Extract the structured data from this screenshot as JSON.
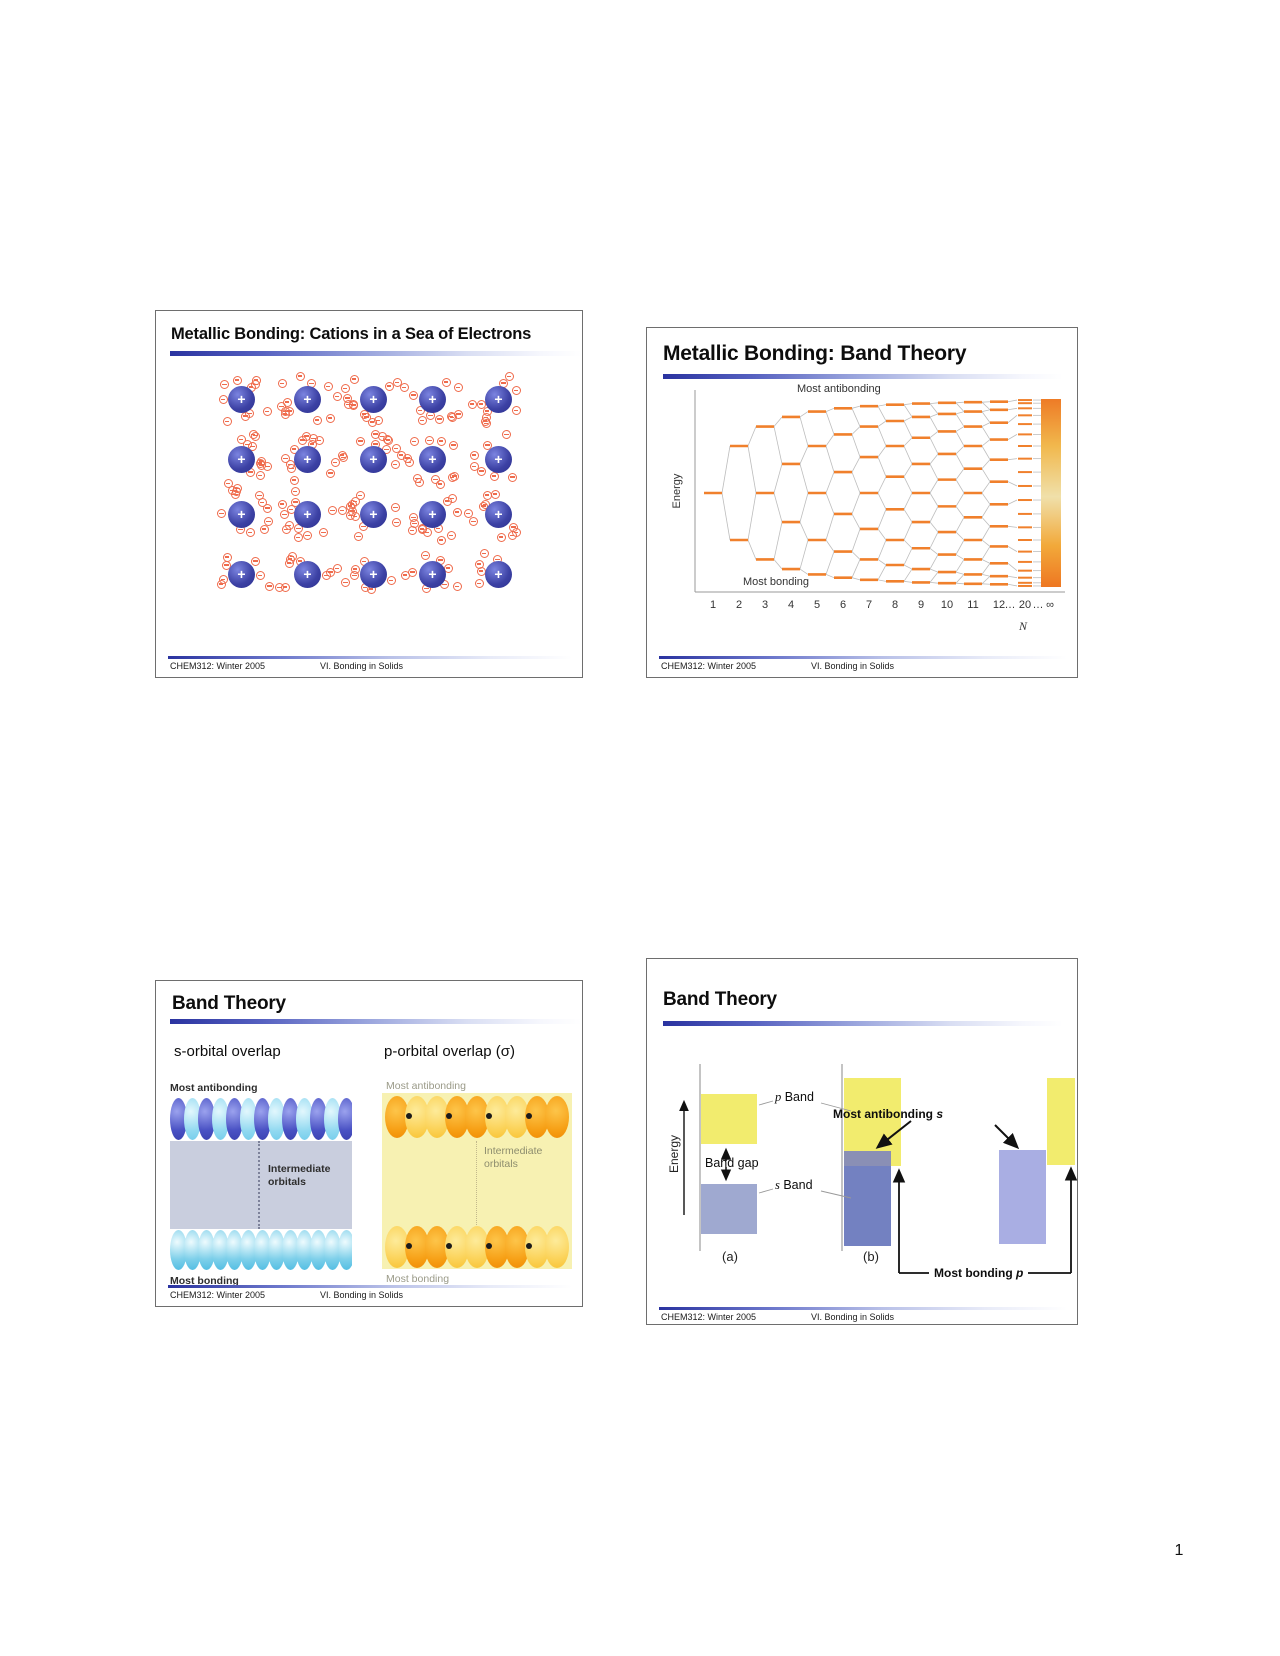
{
  "page": {
    "number": "1"
  },
  "footer": {
    "left": "CHEM312: Winter 2005",
    "center": "VI. Bonding in Solids"
  },
  "slide1": {
    "title": "Metallic Bonding: Cations in a Sea of Electrons",
    "diagram": {
      "rows": 4,
      "cols": 5,
      "cation_symbol": "+",
      "cation_color": "#3c41a4",
      "electron_color": "#ef6b4c",
      "electrons_per_cation": 12
    }
  },
  "slide2": {
    "title": "Metallic Bonding: Band Theory",
    "labels": {
      "top": "Most antibonding",
      "bottom": "Most bonding",
      "ylabel": "Energy",
      "xlabel": "N"
    }
  },
  "chart_data": {
    "type": "line",
    "title": "Metallic Bonding: Band Theory",
    "xlabel": "N",
    "ylabel": "Energy",
    "x_ticks": [
      "1",
      "2",
      "3",
      "4",
      "5",
      "6",
      "7",
      "8",
      "9",
      "10",
      "11",
      "12",
      "…",
      "20",
      "…",
      "∞"
    ],
    "chain_sizes": [
      1,
      2,
      3,
      4,
      5,
      6,
      7,
      8,
      9,
      10,
      11,
      12,
      20
    ],
    "model": "Each column N shows the N molecular-orbital energy levels of an N-atom chain, E(k) = E0 - cos(k*pi/(N+1)) for k = 1..N; the single level at N=1 fans out and converges to a continuous energy band (orange bar) at N = infinity",
    "annotations": [
      "Most antibonding",
      "Most bonding"
    ],
    "level_color": "#f0802c",
    "connector_color": "#bdbdbd",
    "band_gradient": [
      "#ee7b26",
      "#f1b84d",
      "#f0e0aa",
      "#f2a93a",
      "#ee7722"
    ],
    "legend": false,
    "grid": false
  },
  "slide3": {
    "title": "Band Theory",
    "left": {
      "heading": "s-orbital overlap",
      "top_label": "Most antibonding",
      "mid_label": "Intermediate orbitals",
      "bottom_label": "Most bonding",
      "colors": {
        "antibonding_lobes": [
          "#4a52c4",
          "#8fd8f0"
        ],
        "bonding_lobes": "#4fbce2",
        "background": "#c9cede"
      }
    },
    "right": {
      "heading": "p-orbital overlap (σ)",
      "top_label": "Most antibonding",
      "mid_label": "Intermediate orbitals",
      "bottom_label": "Most bonding",
      "colors": {
        "lobes": [
          "#f69d12",
          "#fbd052"
        ],
        "background": "#f7f1b2",
        "node_dots": "#1b1b1b"
      }
    }
  },
  "slide4": {
    "title": "Band Theory",
    "ylabel": "Energy",
    "p_band": "p Band",
    "s_band": "s Band",
    "band_gap": "Band gap",
    "most_antibonding_s": {
      "text": "Most antibonding",
      "suffix": "s"
    },
    "most_bonding_p": {
      "text": "Most bonding",
      "suffix": "p"
    },
    "case_a": "(a)",
    "case_b": "(b)",
    "colors": {
      "p_band": "#f2ec6e",
      "s_band_a": "#9fa9d0",
      "s_band_b": "#7381c1",
      "overlap": "#8a8fb5",
      "s_band_c": "#a9aee3"
    }
  }
}
